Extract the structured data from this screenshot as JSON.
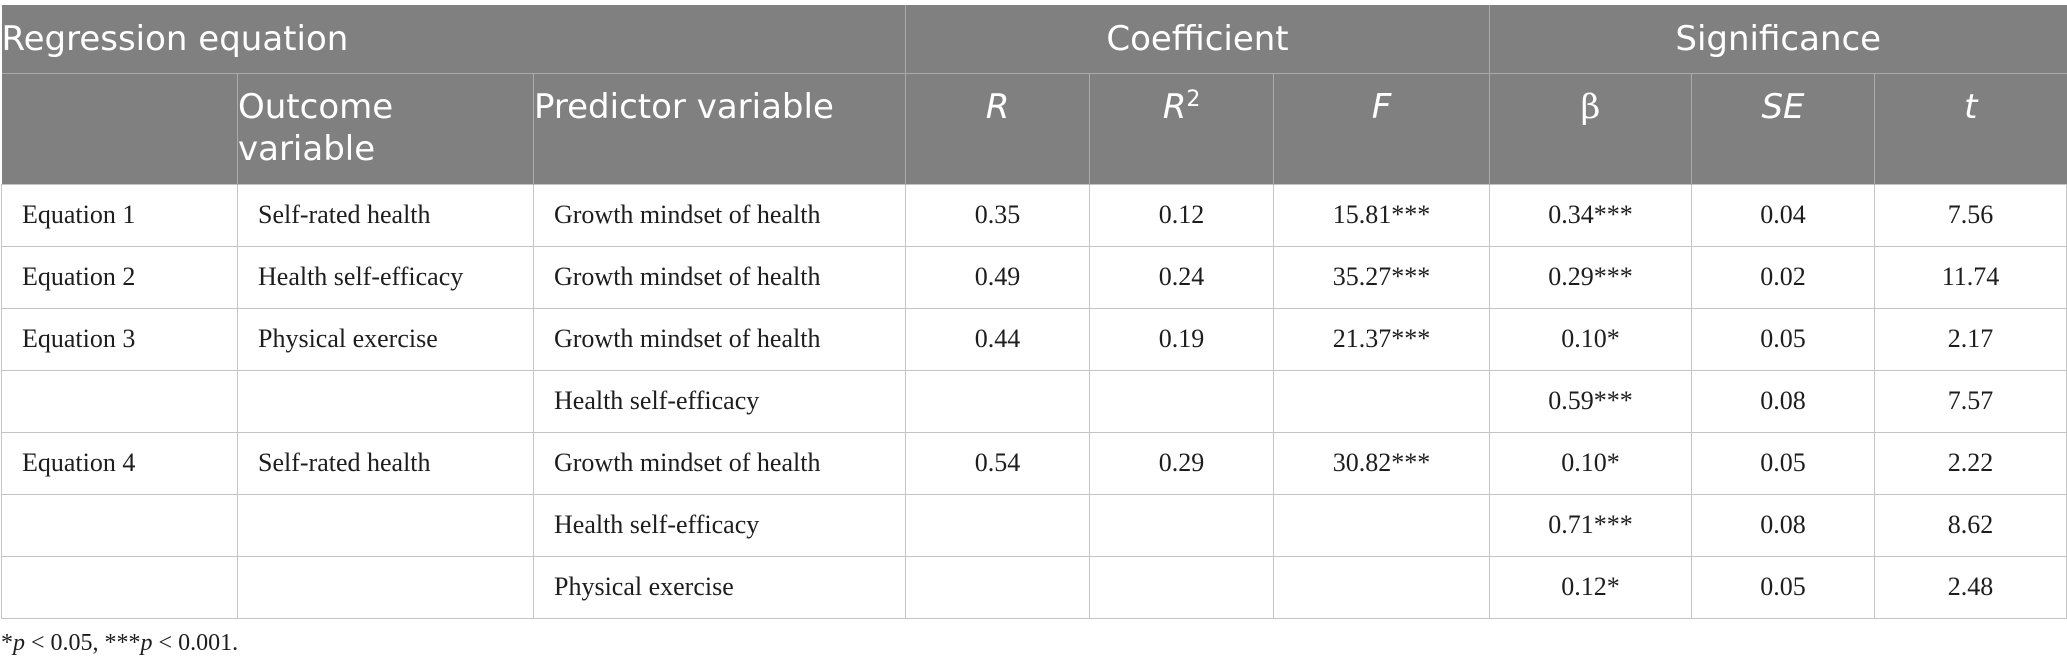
{
  "table": {
    "group_headers": {
      "regression_equation": "Regression equation",
      "coefficient": "Coefficient",
      "significance": "Significance"
    },
    "columns": {
      "equation": "",
      "outcome_line1": "Outcome",
      "outcome_line2": "variable",
      "predictor": "Predictor variable",
      "R": "R",
      "R2_base": "R",
      "R2_sup": "2",
      "F": "F",
      "beta": "β",
      "SE": "SE",
      "t": "t"
    },
    "rows": [
      {
        "equation": "Equation 1",
        "outcome": "Self-rated health",
        "predictor": "Growth mindset of health",
        "R": "0.35",
        "R2": "0.12",
        "F": "15.81***",
        "beta": "0.34***",
        "SE": "0.04",
        "t": "7.56"
      },
      {
        "equation": "Equation 2",
        "outcome": "Health self-efficacy",
        "predictor": "Growth mindset of health",
        "R": "0.49",
        "R2": "0.24",
        "F": "35.27***",
        "beta": "0.29***",
        "SE": "0.02",
        "t": "11.74"
      },
      {
        "equation": "Equation 3",
        "outcome": "Physical exercise",
        "predictor": "Growth mindset of health",
        "R": "0.44",
        "R2": "0.19",
        "F": "21.37***",
        "beta": "0.10*",
        "SE": "0.05",
        "t": "2.17"
      },
      {
        "equation": "",
        "outcome": "",
        "predictor": "Health self-efficacy",
        "R": "",
        "R2": "",
        "F": "",
        "beta": "0.59***",
        "SE": "0.08",
        "t": "7.57"
      },
      {
        "equation": "Equation 4",
        "outcome": "Self-rated health",
        "predictor": "Growth mindset of health",
        "R": "0.54",
        "R2": "0.29",
        "F": "30.82***",
        "beta": "0.10*",
        "SE": "0.05",
        "t": "2.22"
      },
      {
        "equation": "",
        "outcome": "",
        "predictor": "Health self-efficacy",
        "R": "",
        "R2": "",
        "F": "",
        "beta": "0.71***",
        "SE": "0.08",
        "t": "8.62"
      },
      {
        "equation": "",
        "outcome": "",
        "predictor": "Physical exercise",
        "R": "",
        "R2": "",
        "F": "",
        "beta": "0.12*",
        "SE": "0.05",
        "t": "2.48"
      }
    ]
  },
  "footnote": {
    "star1": "*",
    "p1": "p",
    "rest1": " < 0.05, ***",
    "p2": "p",
    "rest2": " < 0.001."
  }
}
